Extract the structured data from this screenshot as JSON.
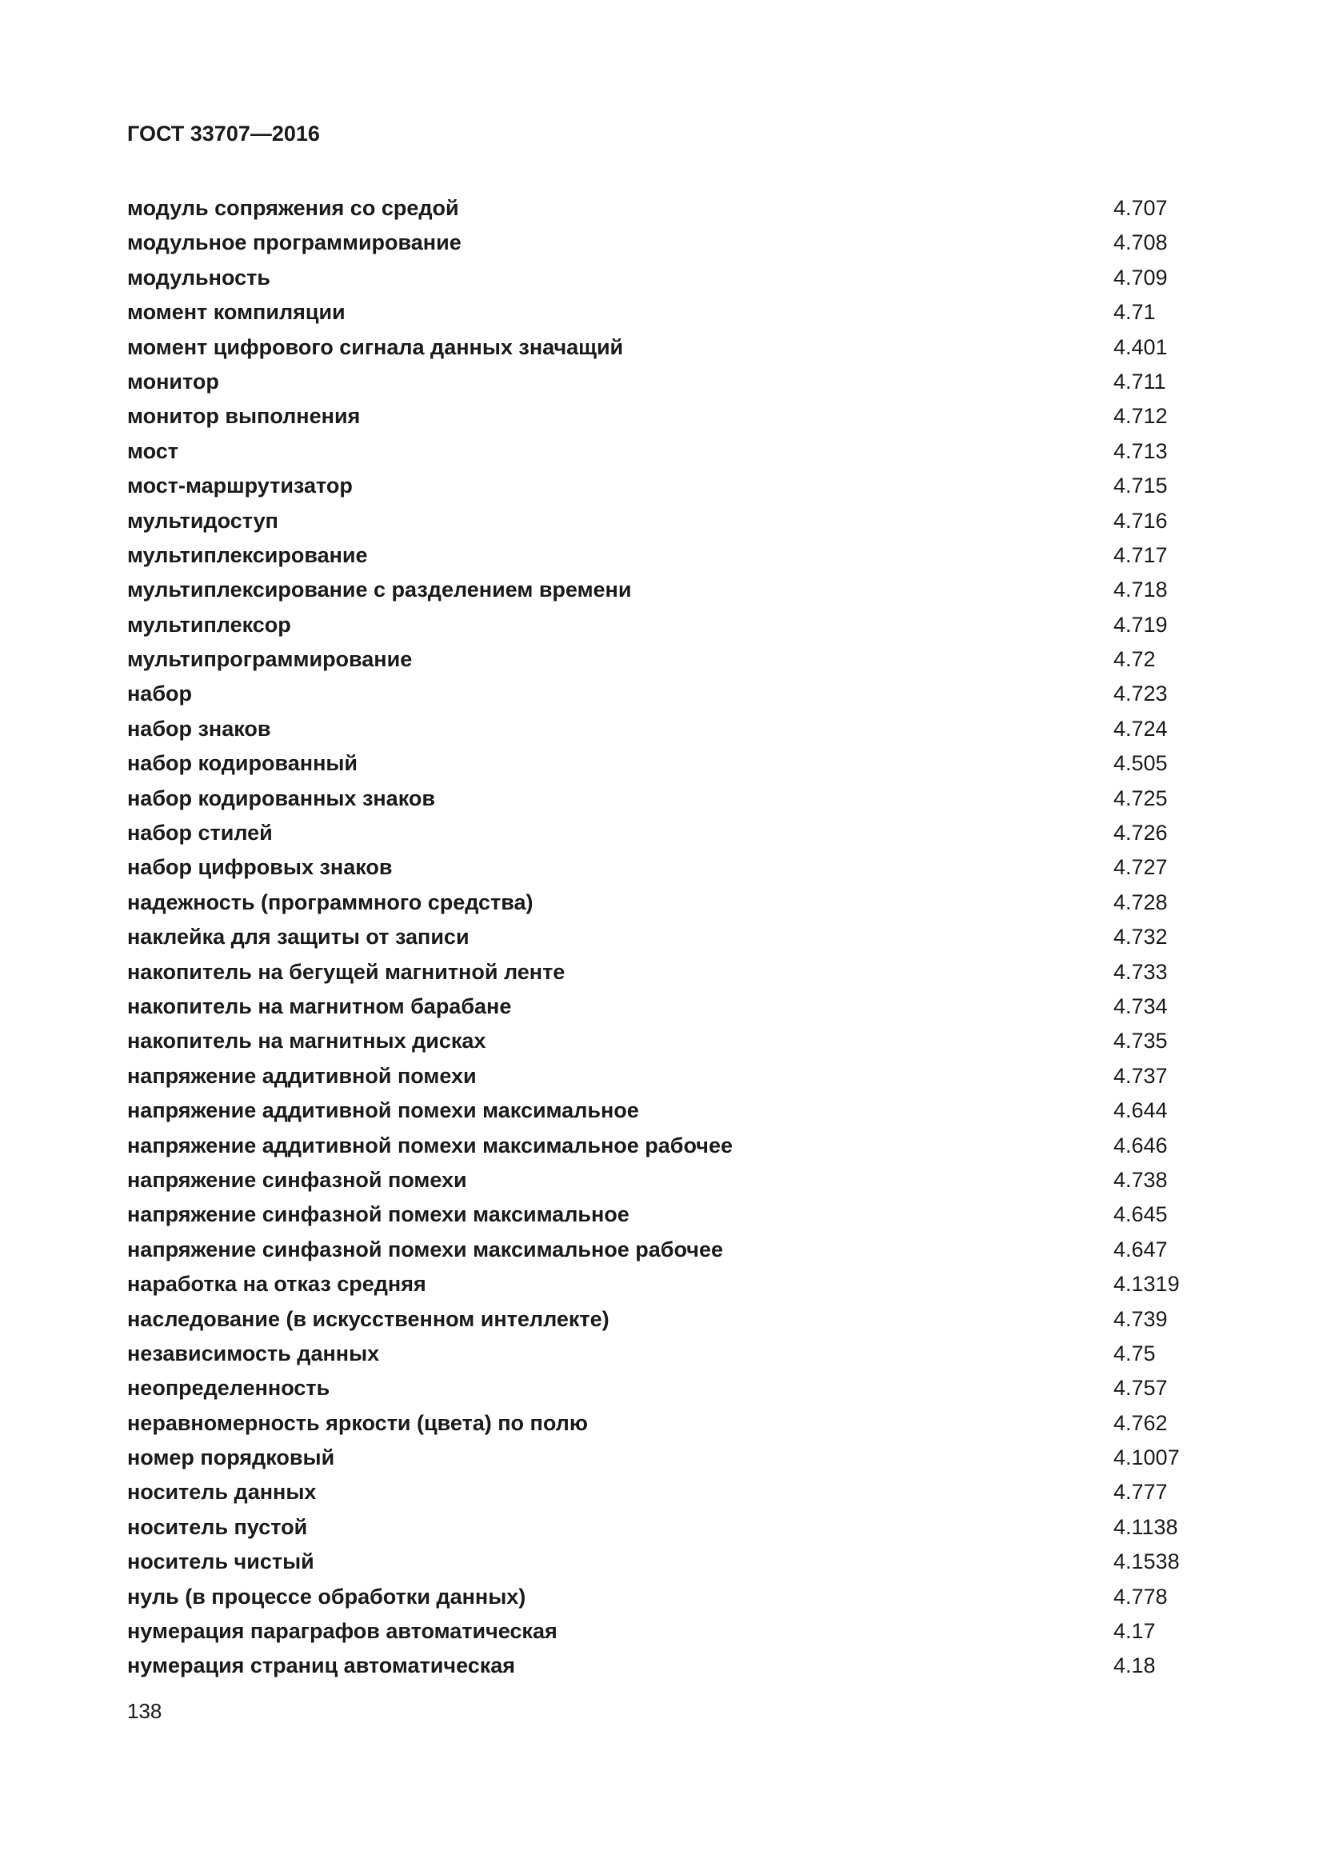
{
  "header": {
    "title": "ГОСТ 33707—2016"
  },
  "entries": [
    {
      "term": "модуль сопряжения со средой",
      "ref": "4.707"
    },
    {
      "term": "модульное программирование",
      "ref": "4.708"
    },
    {
      "term": "модульность",
      "ref": "4.709"
    },
    {
      "term": "момент компиляции",
      "ref": "4.71"
    },
    {
      "term": "момент цифрового сигнала данных значащий",
      "ref": "4.401"
    },
    {
      "term": "монитор",
      "ref": "4.711"
    },
    {
      "term": "монитор выполнения",
      "ref": "4.712"
    },
    {
      "term": "мост",
      "ref": "4.713"
    },
    {
      "term": "мост-маршрутизатор",
      "ref": "4.715"
    },
    {
      "term": "мультидоступ",
      "ref": "4.716"
    },
    {
      "term": "мультиплексирование",
      "ref": "4.717"
    },
    {
      "term": "мультиплексирование с разделением времени",
      "ref": "4.718"
    },
    {
      "term": "мультиплексор",
      "ref": "4.719"
    },
    {
      "term": "мультипрограммирование",
      "ref": "4.72"
    },
    {
      "term": "набор",
      "ref": "4.723"
    },
    {
      "term": "набор знаков",
      "ref": "4.724"
    },
    {
      "term": "набор кодированный",
      "ref": "4.505"
    },
    {
      "term": "набор кодированных знаков",
      "ref": "4.725"
    },
    {
      "term": "набор стилей",
      "ref": "4.726"
    },
    {
      "term": "набор цифровых знаков",
      "ref": "4.727"
    },
    {
      "term": "надежность (программного средства)",
      "ref": "4.728"
    },
    {
      "term": "наклейка для защиты от записи",
      "ref": "4.732"
    },
    {
      "term": "накопитель на бегущей магнитной ленте",
      "ref": "4.733"
    },
    {
      "term": "накопитель на магнитном барабане",
      "ref": "4.734"
    },
    {
      "term": "накопитель на магнитных дисках",
      "ref": "4.735"
    },
    {
      "term": "напряжение аддитивной помехи",
      "ref": "4.737"
    },
    {
      "term": "напряжение аддитивной помехи максимальное",
      "ref": "4.644"
    },
    {
      "term": "напряжение аддитивной помехи максимальное рабочее",
      "ref": "4.646"
    },
    {
      "term": "напряжение синфазной помехи",
      "ref": "4.738"
    },
    {
      "term": "напряжение синфазной помехи максимальное",
      "ref": "4.645"
    },
    {
      "term": "напряжение синфазной помехи максимальное рабочее",
      "ref": "4.647"
    },
    {
      "term": "наработка на отказ средняя",
      "ref": "4.1319"
    },
    {
      "term": "наследование (в искусственном интеллекте)",
      "ref": "4.739"
    },
    {
      "term": "независимость данных",
      "ref": "4.75"
    },
    {
      "term": "неопределенность",
      "ref": "4.757"
    },
    {
      "term": "неравномерность яркости (цвета) по полю",
      "ref": "4.762"
    },
    {
      "term": "номер порядковый",
      "ref": "4.1007"
    },
    {
      "term": "носитель данных",
      "ref": "4.777"
    },
    {
      "term": "носитель пустой",
      "ref": "4.1138"
    },
    {
      "term": "носитель чистый",
      "ref": "4.1538"
    },
    {
      "term": "нуль (в процессе обработки данных)",
      "ref": "4.778"
    },
    {
      "term": "нумерация параграфов автоматическая",
      "ref": "4.17"
    },
    {
      "term": "нумерация страниц автоматическая",
      "ref": "4.18"
    }
  ],
  "footer": {
    "page_number": "138"
  }
}
